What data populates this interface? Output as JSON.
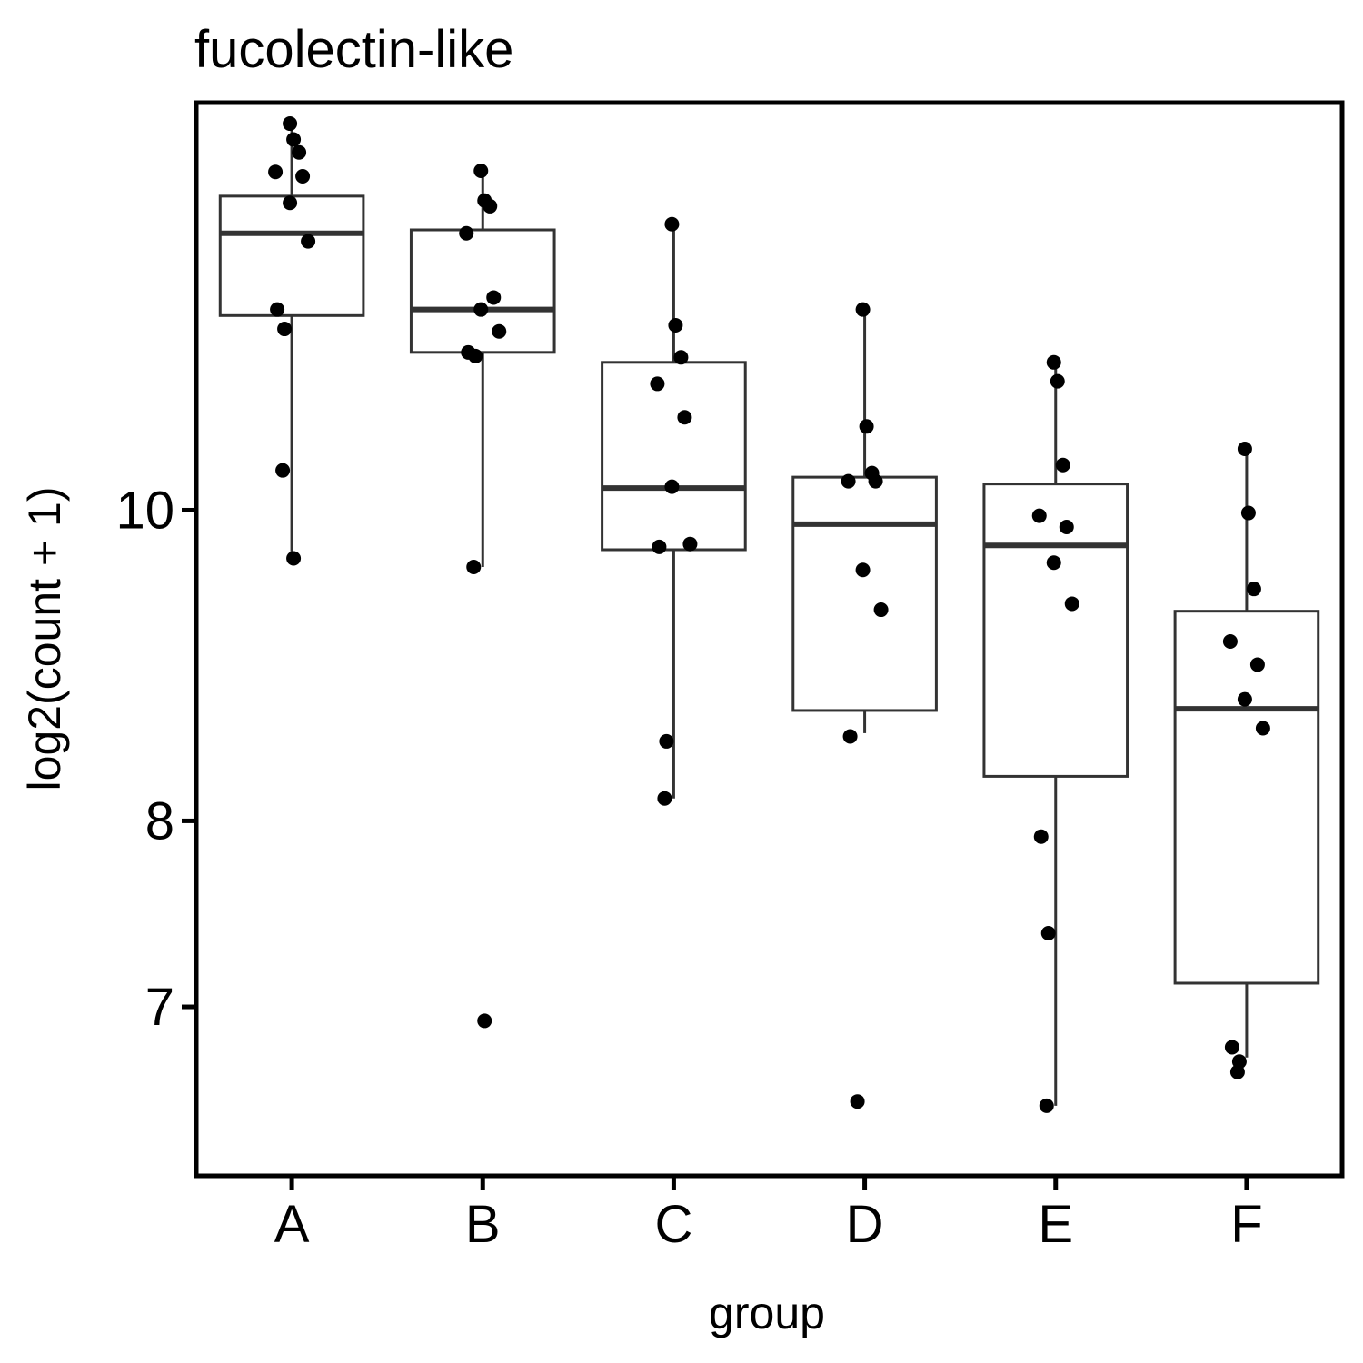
{
  "chart_data": {
    "type": "box",
    "title": "fucolectin-like",
    "xlabel": "group",
    "ylabel": "log2(count + 1)",
    "scale": "log",
    "ylim": [
      6.2,
      13.4
    ],
    "yticks": [
      7,
      8,
      10
    ],
    "grid": false,
    "categories": [
      "A",
      "B",
      "C",
      "D",
      "E",
      "F"
    ],
    "boxes": [
      {
        "group": "A",
        "whisker_low": 9.67,
        "q1": 11.5,
        "median": 12.2,
        "q3": 12.53,
        "whisker_high": 13.2
      },
      {
        "group": "B",
        "whisker_low": 9.6,
        "q1": 11.2,
        "median": 11.55,
        "q3": 12.23,
        "whisker_high": 12.75
      },
      {
        "group": "C",
        "whisker_low": 8.13,
        "q1": 9.72,
        "median": 10.16,
        "q3": 11.12,
        "whisker_high": 12.28
      },
      {
        "group": "D",
        "whisker_low": 8.52,
        "q1": 8.66,
        "median": 9.9,
        "q3": 10.24,
        "whisker_high": 11.55
      },
      {
        "group": "E",
        "whisker_low": 6.52,
        "q1": 8.26,
        "median": 9.75,
        "q3": 10.19,
        "whisker_high": 11.15
      },
      {
        "group": "F",
        "whisker_low": 6.75,
        "q1": 7.12,
        "median": 8.67,
        "q3": 9.3,
        "whisker_high": 10.46
      }
    ],
    "points": [
      {
        "group": "A",
        "y": [
          13.2,
          13.05,
          12.93,
          12.75,
          12.71,
          12.47,
          12.13,
          11.55,
          11.39,
          10.29,
          9.66
        ]
      },
      {
        "group": "B",
        "y": [
          12.76,
          12.49,
          12.44,
          12.2,
          11.65,
          11.55,
          11.37,
          11.2,
          11.17,
          9.6,
          6.93
        ]
      },
      {
        "group": "C",
        "y": [
          12.28,
          11.42,
          11.16,
          10.95,
          10.69,
          10.17,
          9.76,
          9.74,
          8.47,
          8.13
        ]
      },
      {
        "group": "D",
        "y": [
          11.55,
          10.62,
          10.27,
          10.21,
          10.21,
          9.58,
          9.31,
          8.5,
          6.54
        ]
      },
      {
        "group": "E",
        "y": [
          11.12,
          10.97,
          10.33,
          9.96,
          9.88,
          9.63,
          9.35,
          7.91,
          7.38,
          6.52
        ]
      },
      {
        "group": "F",
        "y": [
          10.45,
          9.98,
          9.45,
          9.1,
          8.95,
          8.73,
          8.55,
          6.8,
          6.73,
          6.68
        ]
      }
    ]
  }
}
